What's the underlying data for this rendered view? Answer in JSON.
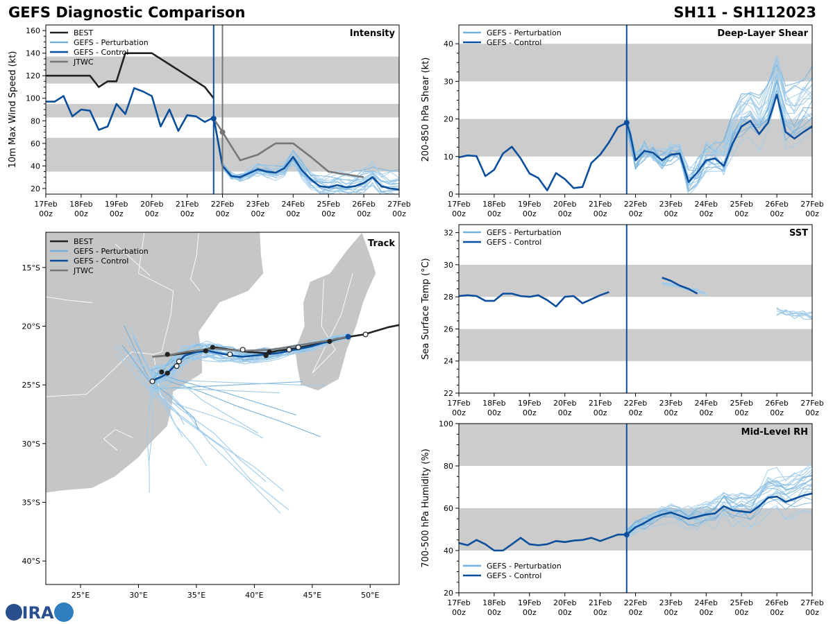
{
  "page": {
    "title_left": "GEFS Diagnostic Comparison",
    "title_right": "SH11 - SH112023",
    "logo_text": "CIRA"
  },
  "colors": {
    "best": "#222222",
    "perturbation": "#74b0dc",
    "perturbation_thin": "#9fcbea",
    "control": "#0b4f9c",
    "jtwc": "#777777",
    "band": "#cccccc",
    "land": "#c6c6c6"
  },
  "time_axis": {
    "ticks": [
      "17Feb\n00z",
      "18Feb\n00z",
      "19Feb\n00z",
      "20Feb\n00z",
      "21Feb\n00z",
      "22Feb\n00z",
      "23Feb\n00z",
      "24Feb\n00z",
      "25Feb\n00z",
      "26Feb\n00z",
      "27Feb\n00z"
    ],
    "init_day": 4.75,
    "jtwc_day": 5.0
  },
  "chart_data": [
    {
      "id": "intensity",
      "type": "line",
      "title": "Intensity",
      "ylabel": "10m Max Wind Speed (kt)",
      "ylim": [
        15,
        165
      ],
      "yticks": [
        20,
        40,
        60,
        80,
        100,
        120,
        140,
        160
      ],
      "bands": [
        [
          35,
          65
        ],
        [
          83,
          95
        ],
        [
          113,
          137
        ]
      ],
      "legend": [
        "BEST",
        "GEFS - Perturbation",
        "GEFS - Control",
        "JTWC"
      ],
      "series": [
        {
          "name": "BEST",
          "x": [
            0,
            0.75,
            1.25,
            1.5,
            1.75,
            2,
            2.25,
            2.5,
            2.75,
            3,
            3.5,
            4,
            4.5,
            4.75
          ],
          "y": [
            120,
            120,
            120,
            110,
            115,
            115,
            140,
            140,
            140,
            140,
            130,
            120,
            110,
            100
          ]
        },
        {
          "name": "GEFS - Control",
          "x": [
            0,
            0.25,
            0.5,
            0.75,
            1,
            1.25,
            1.5,
            1.75,
            2,
            2.25,
            2.5,
            2.75,
            3,
            3.25,
            3.5,
            3.75,
            4,
            4.25,
            4.5,
            4.75
          ],
          "y": [
            97,
            97,
            102,
            84,
            90,
            89,
            72,
            75,
            95,
            86,
            109,
            106,
            102,
            75,
            90,
            71,
            85,
            84,
            79,
            83
          ]
        },
        {
          "name": "GEFS - Control fcst",
          "x": [
            4.75,
            5,
            5.25,
            5.5,
            6,
            6.25,
            6.5,
            6.75,
            7,
            7.25,
            7.5,
            7.75,
            8,
            8.25,
            8.5,
            8.75,
            9,
            9.25,
            9.5,
            9.75,
            10
          ],
          "y": [
            83,
            40,
            31,
            30,
            37,
            35,
            34,
            38,
            48,
            36,
            28,
            22,
            21,
            23,
            21,
            22,
            25,
            30,
            22,
            20,
            19
          ]
        },
        {
          "name": "JTWC",
          "x": [
            4.75,
            5,
            5.5,
            6,
            6.5,
            7,
            7.5,
            8,
            9
          ],
          "y": [
            82,
            70,
            45,
            50,
            60,
            60,
            48,
            35,
            30
          ]
        }
      ]
    },
    {
      "id": "shear",
      "type": "line",
      "title": "Deep-Layer Shear",
      "ylabel": "200-850 hPa Shear (kt)",
      "ylim": [
        0,
        45
      ],
      "yticks": [
        0,
        10,
        20,
        30,
        40
      ],
      "bands": [
        [
          10,
          20
        ],
        [
          30,
          40
        ]
      ],
      "legend": [
        "GEFS - Perturbation",
        "GEFS - Control"
      ],
      "series": [
        {
          "name": "GEFS - Control",
          "x": [
            0,
            0.25,
            0.5,
            0.75,
            1,
            1.25,
            1.5,
            1.75,
            2,
            2.25,
            2.5,
            2.75,
            3,
            3.25,
            3.5,
            3.75,
            4,
            4.25,
            4.5,
            4.75
          ],
          "y": [
            9.8,
            10.3,
            10.1,
            4.8,
            6.5,
            10.8,
            12.6,
            9.5,
            5.5,
            4.3,
            1,
            5.6,
            4,
            1.6,
            1.9,
            8.3,
            10.5,
            13.8,
            17.8,
            19
          ]
        },
        {
          "name": "GEFS - Control fcst",
          "x": [
            4.75,
            4.85,
            5,
            5.25,
            5.5,
            5.75,
            6,
            6.25,
            6.5,
            6.75,
            7,
            7.25,
            7.5,
            7.75,
            8,
            8.25,
            8.5,
            8.75,
            9,
            9.25,
            9.5,
            9.75,
            10
          ],
          "y": [
            19,
            16,
            9,
            11.5,
            11,
            9,
            10.5,
            10.8,
            3.2,
            5.8,
            9,
            9.5,
            7.5,
            13.5,
            18,
            19.5,
            16,
            19,
            26.5,
            16.5,
            14.8,
            16.5,
            18
          ]
        }
      ]
    },
    {
      "id": "sst",
      "type": "line",
      "title": "SST",
      "ylabel": "Sea Surface Temp (°C)",
      "ylim": [
        22,
        32.5
      ],
      "yticks": [
        22,
        24,
        26,
        28,
        30,
        32
      ],
      "bands": [
        [
          24,
          26
        ],
        [
          28,
          30
        ]
      ],
      "legend": [
        "GEFS - Perturbation",
        "GEFS - Control"
      ],
      "series": [
        {
          "name": "GEFS - Control",
          "x": [
            0,
            0.25,
            0.5,
            0.75,
            1,
            1.25,
            1.5,
            1.75,
            2,
            2.25,
            2.5,
            2.75,
            3,
            3.25,
            3.5,
            3.75,
            4,
            4.25
          ],
          "y": [
            28.05,
            28.1,
            28.05,
            27.75,
            27.75,
            28.2,
            28.2,
            28.05,
            28.0,
            28.1,
            27.8,
            27.4,
            28.0,
            28.05,
            27.6,
            27.85,
            28.1,
            28.3
          ]
        },
        {
          "name": "GEFS - Control fcst",
          "x": [
            5.75,
            6,
            6.25,
            6.5,
            6.75
          ],
          "y": [
            29.2,
            29.0,
            28.7,
            28.5,
            28.2
          ]
        }
      ]
    },
    {
      "id": "rh",
      "type": "line",
      "title": "Mid-Level RH",
      "ylabel": "700-500 hPa Humidity (%)",
      "ylim": [
        20,
        100
      ],
      "yticks": [
        20,
        40,
        60,
        80,
        100
      ],
      "bands": [
        [
          40,
          60
        ],
        [
          80,
          100
        ]
      ],
      "legend": [
        "GEFS - Perturbation",
        "GEFS - Control"
      ],
      "series": [
        {
          "name": "GEFS - Control",
          "x": [
            0,
            0.25,
            0.5,
            0.75,
            1,
            1.25,
            1.5,
            1.75,
            2,
            2.25,
            2.5,
            2.75,
            3,
            3.25,
            3.5,
            3.75,
            4,
            4.25,
            4.5,
            4.75
          ],
          "y": [
            43.5,
            42.5,
            45,
            43,
            40,
            40,
            43,
            46,
            43,
            42.5,
            43,
            44.5,
            44,
            44.7,
            45,
            46,
            44.5,
            46,
            47.5,
            47.5
          ]
        },
        {
          "name": "GEFS - Control fcst",
          "x": [
            4.75,
            5,
            5.25,
            5.5,
            5.75,
            6,
            6.25,
            6.5,
            6.75,
            7,
            7.25,
            7.5,
            7.75,
            8,
            8.25,
            8.5,
            8.75,
            9,
            9.25,
            9.5,
            9.75,
            10
          ],
          "y": [
            47.5,
            51,
            53,
            55.5,
            57,
            58,
            56.5,
            55,
            56,
            57,
            57.5,
            61,
            59,
            58.5,
            58,
            61,
            65,
            65.5,
            63,
            64.5,
            66,
            67
          ]
        }
      ]
    },
    {
      "id": "track",
      "type": "scatter",
      "title": "Track",
      "xlim": [
        22,
        52.5
      ],
      "ylim": [
        -42,
        -12
      ],
      "xticks": [
        25,
        30,
        35,
        40,
        45,
        50
      ],
      "xticklabels": [
        "25°E",
        "30°E",
        "35°E",
        "40°E",
        "45°E",
        "50°E"
      ],
      "yticks": [
        -15,
        -20,
        -25,
        -30,
        -35,
        -40
      ],
      "yticklabels": [
        "15°S",
        "20°S",
        "25°S",
        "30°S",
        "35°S",
        "40°S"
      ],
      "legend": [
        "BEST",
        "GEFS - Perturbation",
        "GEFS - Control",
        "JTWC"
      ],
      "series": [
        {
          "name": "BEST",
          "lon": [
            52.5,
            51.5,
            50.5,
            49.5,
            48.2,
            47.2,
            46.5,
            45,
            43.5,
            42,
            41,
            39.5,
            38,
            36.5,
            35.8,
            34,
            32.5,
            31.2
          ],
          "lat": [
            -19.9,
            -20.1,
            -20.4,
            -20.7,
            -20.9,
            -21.1,
            -21.3,
            -21.6,
            -21.9,
            -22.1,
            -22.3,
            -22.2,
            -22,
            -21.8,
            -22,
            -22.3,
            -22.5,
            -22.6
          ]
        },
        {
          "name": "GEFS - Control",
          "lon": [
            48.1,
            47,
            46,
            45,
            44,
            43,
            42,
            41,
            40,
            39,
            38,
            37,
            36,
            35,
            34,
            33.5,
            33,
            32.5,
            32,
            31.5,
            31.1
          ],
          "lat": [
            -20.9,
            -21.1,
            -21.4,
            -21.7,
            -21.9,
            -22.1,
            -22.3,
            -22.4,
            -22.5,
            -22.6,
            -22.5,
            -22.3,
            -22.1,
            -22.2,
            -22.5,
            -23,
            -23.5,
            -24,
            -24.3,
            -24.5,
            -24.8
          ]
        },
        {
          "name": "JTWC",
          "lon": [
            48.1,
            46.5,
            44,
            41.5,
            38.8,
            36.5,
            34,
            32.5,
            31.2
          ],
          "lat": [
            -20.9,
            -21.2,
            -21.6,
            -22,
            -22.1,
            -21.9,
            -22.2,
            -22.5,
            -22.6
          ]
        }
      ],
      "best_points": [
        [
          46.5,
          -21.3
        ],
        [
          41.3,
          -22.2
        ],
        [
          41,
          -22.5
        ],
        [
          36.4,
          -21.8
        ],
        [
          35.8,
          -22.1
        ],
        [
          32.5,
          -22.4
        ],
        [
          32,
          -23.9
        ],
        [
          32.5,
          -24
        ]
      ],
      "control_points": [
        [
          49.6,
          -20.7
        ],
        [
          43.8,
          -21.8
        ],
        [
          43,
          -22
        ],
        [
          39,
          -22
        ],
        [
          37.9,
          -22.4
        ],
        [
          33.5,
          -23
        ],
        [
          33.3,
          -23.4
        ],
        [
          31.2,
          -24.7
        ]
      ]
    }
  ]
}
